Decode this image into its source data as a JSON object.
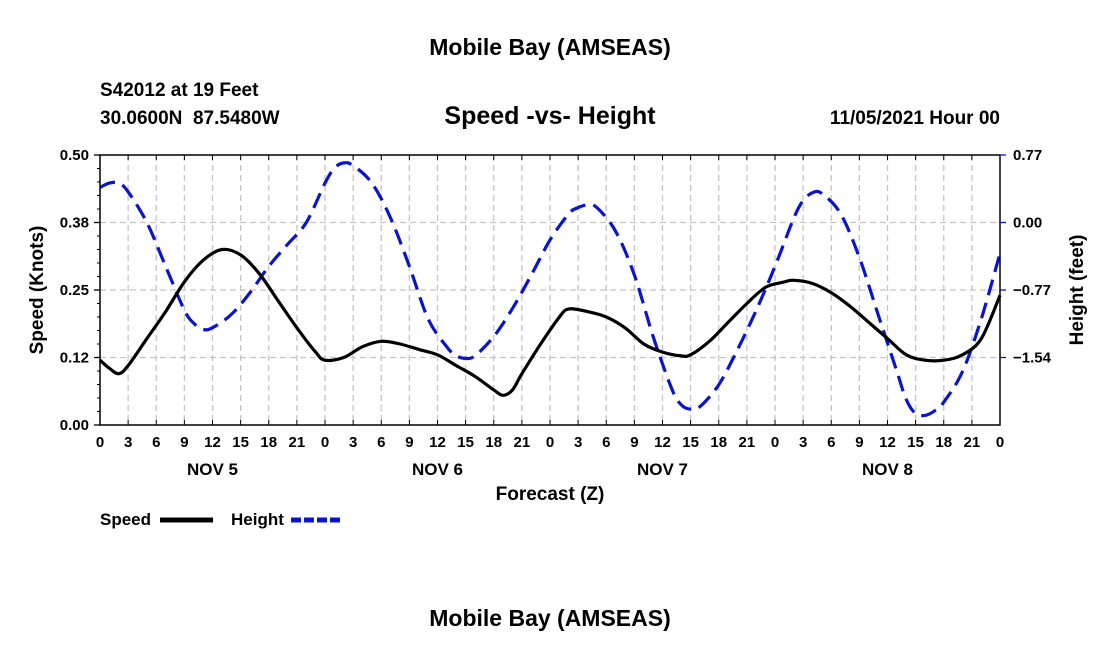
{
  "page": {
    "top_title": "Mobile Bay (AMSEAS)",
    "bottom_title": "Mobile Bay (AMSEAS)",
    "station": "S42012 at 19 Feet",
    "coords": "30.0600N  87.5480W",
    "datetime": "11/05/2021 Hour 00"
  },
  "chart_data": {
    "type": "line",
    "title": "Speed -vs- Height",
    "xlabel": "Forecast (Z)",
    "ylabel_left": "Speed (Knots)",
    "ylabel_right": "Height (feet)",
    "x_unit": "hours from 11/05/2021 00Z",
    "xlim": [
      0,
      96
    ],
    "ylim_left": [
      0.0,
      0.5
    ],
    "ylim_right": [
      -2.31,
      0.77
    ],
    "left_ticks": [
      {
        "value": 0.0,
        "label": "0.00"
      },
      {
        "value": 0.125,
        "label": "0.12"
      },
      {
        "value": 0.25,
        "label": "0.25"
      },
      {
        "value": 0.375,
        "label": "0.38"
      },
      {
        "value": 0.5,
        "label": "0.50"
      }
    ],
    "right_ticks": [
      {
        "value": -1.54,
        "label": "−1.54"
      },
      {
        "value": -0.77,
        "label": "−0.77"
      },
      {
        "value": 0.0,
        "label": "0.00"
      },
      {
        "value": 0.77,
        "label": "0.77"
      }
    ],
    "x_ticks": [
      {
        "h": 0,
        "label": "0"
      },
      {
        "h": 3,
        "label": "3"
      },
      {
        "h": 6,
        "label": "6"
      },
      {
        "h": 9,
        "label": "9"
      },
      {
        "h": 12,
        "label": "12"
      },
      {
        "h": 15,
        "label": "15"
      },
      {
        "h": 18,
        "label": "18"
      },
      {
        "h": 21,
        "label": "21"
      },
      {
        "h": 24,
        "label": "0"
      },
      {
        "h": 27,
        "label": "3"
      },
      {
        "h": 30,
        "label": "6"
      },
      {
        "h": 33,
        "label": "9"
      },
      {
        "h": 36,
        "label": "12"
      },
      {
        "h": 39,
        "label": "15"
      },
      {
        "h": 42,
        "label": "18"
      },
      {
        "h": 45,
        "label": "21"
      },
      {
        "h": 48,
        "label": "0"
      },
      {
        "h": 51,
        "label": "3"
      },
      {
        "h": 54,
        "label": "6"
      },
      {
        "h": 57,
        "label": "9"
      },
      {
        "h": 60,
        "label": "12"
      },
      {
        "h": 63,
        "label": "15"
      },
      {
        "h": 66,
        "label": "18"
      },
      {
        "h": 69,
        "label": "21"
      },
      {
        "h": 72,
        "label": "0"
      },
      {
        "h": 75,
        "label": "3"
      },
      {
        "h": 78,
        "label": "6"
      },
      {
        "h": 81,
        "label": "9"
      },
      {
        "h": 84,
        "label": "12"
      },
      {
        "h": 87,
        "label": "15"
      },
      {
        "h": 90,
        "label": "18"
      },
      {
        "h": 93,
        "label": "21"
      },
      {
        "h": 96,
        "label": "0"
      }
    ],
    "day_labels": [
      {
        "h": 12,
        "label": "NOV 5"
      },
      {
        "h": 36,
        "label": "NOV 6"
      },
      {
        "h": 60,
        "label": "NOV 7"
      },
      {
        "h": 84,
        "label": "NOV 8"
      }
    ],
    "legend": [
      {
        "name": "Speed",
        "color": "#000000",
        "dash": "solid"
      },
      {
        "name": "Height",
        "color": "#0a14c8",
        "dash": "dashed"
      }
    ],
    "series": [
      {
        "name": "Speed",
        "axis": "left",
        "color": "#000000",
        "points": [
          [
            0,
            0.12
          ],
          [
            1,
            0.105
          ],
          [
            2,
            0.095
          ],
          [
            3,
            0.11
          ],
          [
            5,
            0.16
          ],
          [
            7,
            0.21
          ],
          [
            9,
            0.265
          ],
          [
            11,
            0.305
          ],
          [
            13,
            0.325
          ],
          [
            15,
            0.315
          ],
          [
            17,
            0.28
          ],
          [
            19,
            0.23
          ],
          [
            21,
            0.18
          ],
          [
            23,
            0.135
          ],
          [
            24,
            0.12
          ],
          [
            26,
            0.125
          ],
          [
            28,
            0.145
          ],
          [
            30,
            0.155
          ],
          [
            32,
            0.15
          ],
          [
            34,
            0.14
          ],
          [
            36,
            0.13
          ],
          [
            38,
            0.11
          ],
          [
            40,
            0.09
          ],
          [
            42,
            0.065
          ],
          [
            43,
            0.055
          ],
          [
            44,
            0.065
          ],
          [
            45,
            0.095
          ],
          [
            47,
            0.15
          ],
          [
            49,
            0.2
          ],
          [
            50,
            0.215
          ],
          [
            52,
            0.21
          ],
          [
            54,
            0.2
          ],
          [
            56,
            0.18
          ],
          [
            58,
            0.15
          ],
          [
            60,
            0.135
          ],
          [
            62,
            0.128
          ],
          [
            63,
            0.13
          ],
          [
            65,
            0.155
          ],
          [
            67,
            0.19
          ],
          [
            69,
            0.225
          ],
          [
            71,
            0.255
          ],
          [
            73,
            0.265
          ],
          [
            74,
            0.268
          ],
          [
            76,
            0.262
          ],
          [
            78,
            0.245
          ],
          [
            80,
            0.22
          ],
          [
            82,
            0.19
          ],
          [
            84,
            0.16
          ],
          [
            86,
            0.13
          ],
          [
            88,
            0.12
          ],
          [
            90,
            0.12
          ],
          [
            92,
            0.13
          ],
          [
            94,
            0.16
          ],
          [
            96,
            0.24
          ]
        ]
      },
      {
        "name": "Height",
        "axis": "right",
        "color": "#0a14c8",
        "points": [
          [
            0,
            0.4
          ],
          [
            1,
            0.45
          ],
          [
            2,
            0.45
          ],
          [
            3,
            0.35
          ],
          [
            5,
            0.0
          ],
          [
            7,
            -0.5
          ],
          [
            9,
            -1.0
          ],
          [
            10,
            -1.15
          ],
          [
            11,
            -1.22
          ],
          [
            12,
            -1.2
          ],
          [
            14,
            -1.05
          ],
          [
            16,
            -0.8
          ],
          [
            18,
            -0.5
          ],
          [
            20,
            -0.25
          ],
          [
            22,
            0.0
          ],
          [
            24,
            0.45
          ],
          [
            25,
            0.62
          ],
          [
            26,
            0.68
          ],
          [
            27,
            0.65
          ],
          [
            29,
            0.45
          ],
          [
            31,
            0.05
          ],
          [
            33,
            -0.5
          ],
          [
            35,
            -1.1
          ],
          [
            37,
            -1.42
          ],
          [
            38,
            -1.52
          ],
          [
            39,
            -1.55
          ],
          [
            40,
            -1.52
          ],
          [
            42,
            -1.3
          ],
          [
            44,
            -0.98
          ],
          [
            46,
            -0.6
          ],
          [
            48,
            -0.2
          ],
          [
            50,
            0.1
          ],
          [
            51,
            0.17
          ],
          [
            52,
            0.2
          ],
          [
            53,
            0.17
          ],
          [
            55,
            -0.1
          ],
          [
            57,
            -0.6
          ],
          [
            59,
            -1.3
          ],
          [
            61,
            -1.9
          ],
          [
            62,
            -2.08
          ],
          [
            63,
            -2.13
          ],
          [
            64,
            -2.1
          ],
          [
            66,
            -1.85
          ],
          [
            68,
            -1.45
          ],
          [
            70,
            -1.0
          ],
          [
            72,
            -0.5
          ],
          [
            74,
            0.05
          ],
          [
            75,
            0.25
          ],
          [
            76,
            0.34
          ],
          [
            77,
            0.33
          ],
          [
            79,
            0.1
          ],
          [
            81,
            -0.4
          ],
          [
            83,
            -1.05
          ],
          [
            85,
            -1.7
          ],
          [
            86,
            -2.02
          ],
          [
            87,
            -2.18
          ],
          [
            88,
            -2.2
          ],
          [
            89,
            -2.15
          ],
          [
            90,
            -2.05
          ],
          [
            92,
            -1.7
          ],
          [
            94,
            -1.1
          ],
          [
            96,
            -0.35
          ]
        ]
      }
    ]
  }
}
